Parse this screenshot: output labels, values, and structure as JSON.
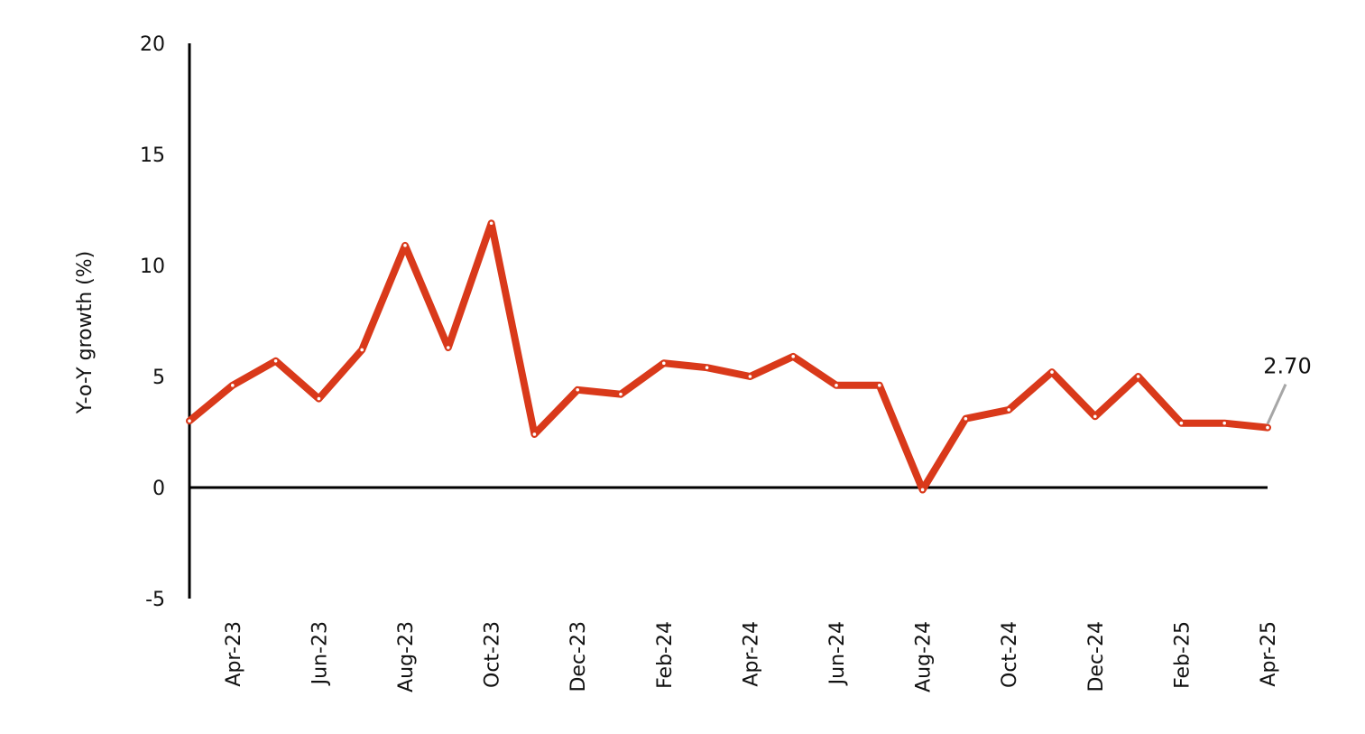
{
  "chart_data": {
    "type": "line",
    "ylabel": "Y-o-Y growth (%)",
    "xlabel": "",
    "ylim": [
      -5,
      20
    ],
    "yticks": [
      -5,
      0,
      5,
      10,
      15,
      20
    ],
    "grid": false,
    "legend": "none",
    "x": [
      "Mar-23",
      "Apr-23",
      "May-23",
      "Jun-23",
      "Jul-23",
      "Aug-23",
      "Sep-23",
      "Oct-23",
      "Nov-23",
      "Dec-23",
      "Jan-24",
      "Feb-24",
      "Mar-24",
      "Apr-24",
      "May-24",
      "Jun-24",
      "Jul-24",
      "Aug-24",
      "Sep-24",
      "Oct-24",
      "Nov-24",
      "Dec-24",
      "Jan-25",
      "Feb-25",
      "Mar-25",
      "Apr-25"
    ],
    "xtick_labels": [
      "Apr-23",
      "Jun-23",
      "Aug-23",
      "Oct-23",
      "Dec-23",
      "Feb-24",
      "Apr-24",
      "Jun-24",
      "Aug-24",
      "Oct-24",
      "Dec-24",
      "Feb-25",
      "Apr-25"
    ],
    "series": [
      {
        "name": "",
        "color": "#D9391A",
        "values": [
          3.0,
          4.6,
          5.7,
          4.0,
          6.2,
          10.9,
          6.3,
          11.9,
          2.4,
          4.4,
          4.2,
          5.6,
          5.4,
          5.0,
          5.9,
          4.6,
          4.6,
          -0.1,
          3.1,
          3.5,
          5.2,
          3.2,
          5.0,
          2.9,
          2.9,
          2.7
        ]
      }
    ],
    "annotations": [
      {
        "x": "Apr-25",
        "y": 2.7,
        "text": "2.70"
      }
    ]
  }
}
